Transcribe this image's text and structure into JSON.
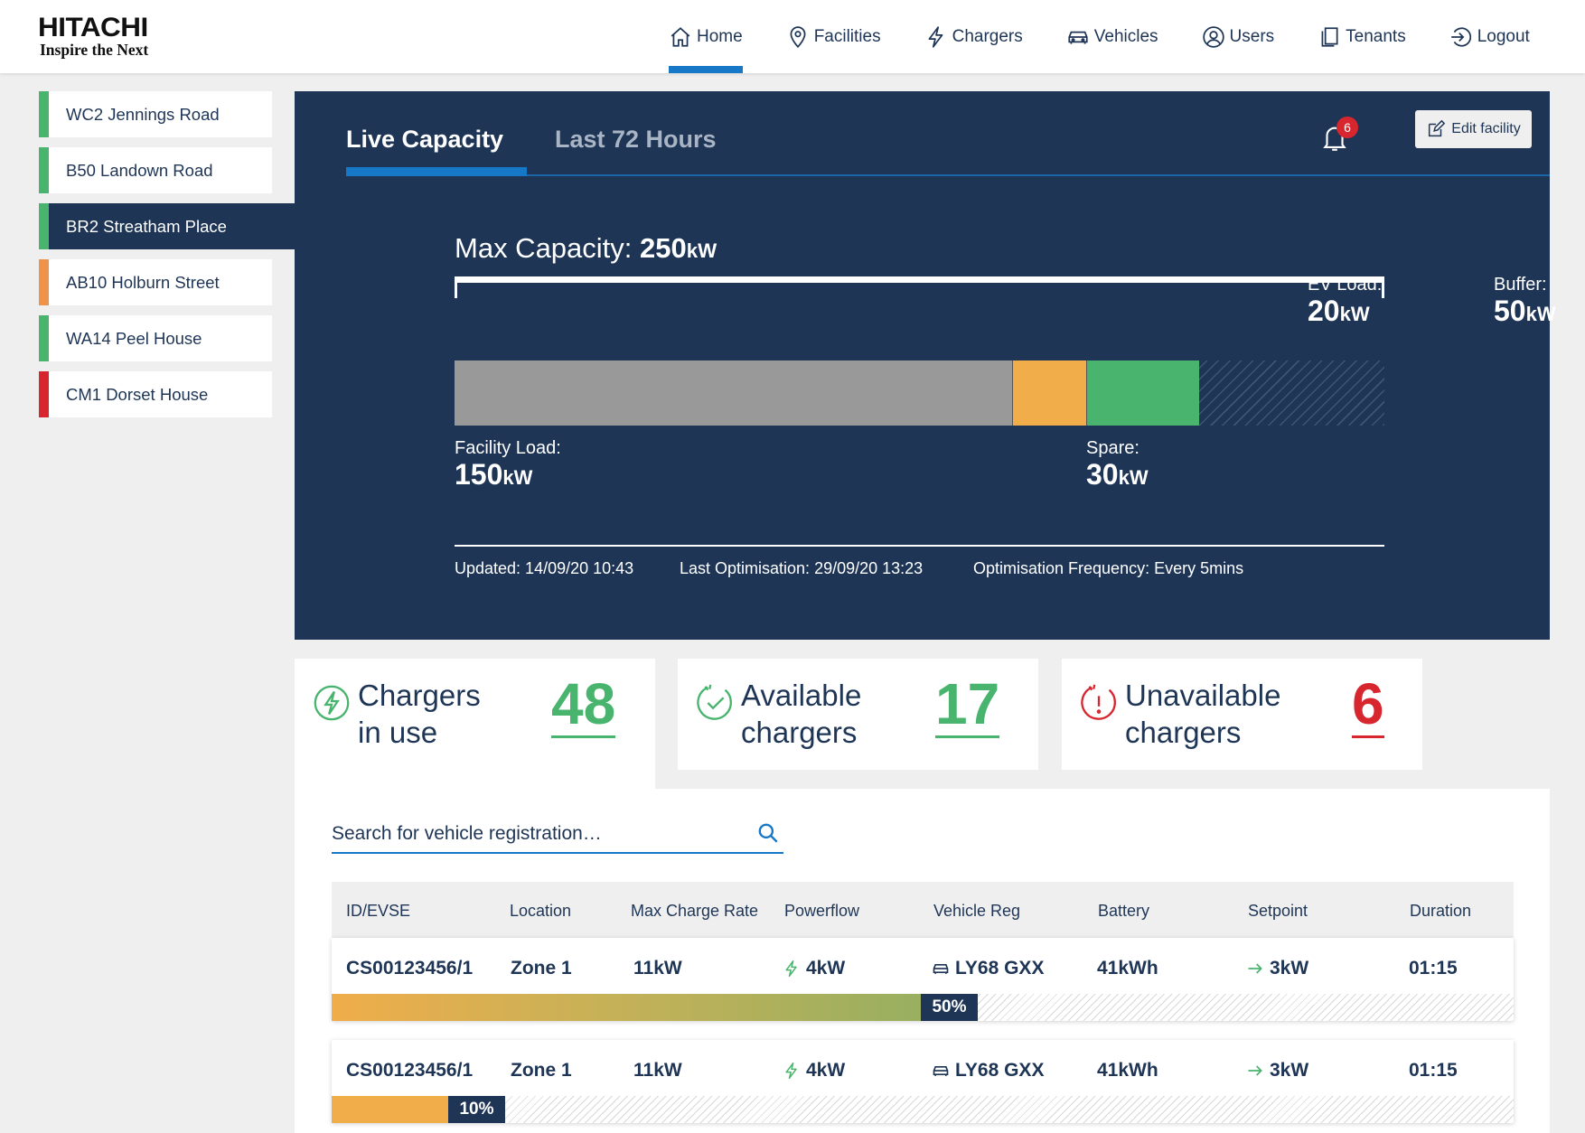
{
  "brand": {
    "name": "HITACHI",
    "tagline": "Inspire the Next"
  },
  "nav": [
    {
      "label": "Home",
      "icon": "home-icon",
      "active": true
    },
    {
      "label": "Facilities",
      "icon": "location-pin-icon"
    },
    {
      "label": "Chargers",
      "icon": "lightning-icon"
    },
    {
      "label": "Vehicles",
      "icon": "car-icon"
    },
    {
      "label": "Users",
      "icon": "user-icon"
    },
    {
      "label": "Tenants",
      "icon": "documents-icon"
    },
    {
      "label": "Logout",
      "icon": "logout-icon"
    }
  ],
  "sidebar": {
    "items": [
      {
        "label": "WC2 Jennings Road",
        "status_color": "#48b46e"
      },
      {
        "label": "B50 Landown Road",
        "status_color": "#48b46e"
      },
      {
        "label": "BR2 Streatham Place",
        "status_color": "#48b46e",
        "active": true
      },
      {
        "label": "AB10 Holburn Street",
        "status_color": "#f0934a"
      },
      {
        "label": "WA14 Peel House",
        "status_color": "#48b46e"
      },
      {
        "label": "CM1 Dorset House",
        "status_color": "#d8262f"
      }
    ]
  },
  "panel": {
    "tabs": {
      "live": "Live Capacity",
      "last72": "Last 72 Hours"
    },
    "notifications": "6",
    "edit_label": "Edit facility",
    "max_capacity": {
      "label": "Max Capacity:",
      "value": "250",
      "unit": "kW"
    },
    "ev_load": {
      "label": "EV Load:",
      "value": "20",
      "unit": "kW"
    },
    "buffer": {
      "label": "Buffer:",
      "value": "50",
      "unit": "kW"
    },
    "facility_load": {
      "label": "Facility Load:",
      "value": "150",
      "unit": "kW"
    },
    "spare": {
      "label": "Spare:",
      "value": "30",
      "unit": "kW"
    },
    "updated": "Updated: 14/09/20 10:43",
    "last_optimisation": "Last Optimisation: 29/09/20 13:23",
    "frequency": "Optimisation Frequency: Every 5mins"
  },
  "stats": {
    "in_use": {
      "label_line1": "Chargers",
      "label_line2": "in use",
      "value": "48",
      "color": "#48b46e"
    },
    "available": {
      "label_line1": "Available",
      "label_line2": "chargers",
      "value": "17",
      "color": "#48b46e"
    },
    "unavailable": {
      "label_line1": "Unavailable",
      "label_line2": "chargers",
      "value": "6",
      "color": "#d8262f"
    }
  },
  "search": {
    "placeholder": "Search for vehicle registration…"
  },
  "table": {
    "headers": {
      "id": "ID/EVSE",
      "location": "Location",
      "max_rate": "Max Charge Rate",
      "powerflow": "Powerflow",
      "vehicle_reg": "Vehicle Reg",
      "battery": "Battery",
      "setpoint": "Setpoint",
      "duration": "Duration"
    },
    "rows": [
      {
        "id": "CS00123456/1",
        "location": "Zone 1",
        "max_rate": "11kW",
        "powerflow": "4kW",
        "vehicle_reg": "LY68 GXX",
        "battery": "41kWh",
        "setpoint": "3kW",
        "duration": "01:15",
        "progress_label": "50%",
        "progress": 0.5
      },
      {
        "id": "CS00123456/1",
        "location": "Zone 1",
        "max_rate": "11kW",
        "powerflow": "4kW",
        "vehicle_reg": "LY68 GXX",
        "battery": "41kWh",
        "setpoint": "3kW",
        "duration": "01:15",
        "progress_label": "10%",
        "progress": 0.1
      }
    ]
  }
}
